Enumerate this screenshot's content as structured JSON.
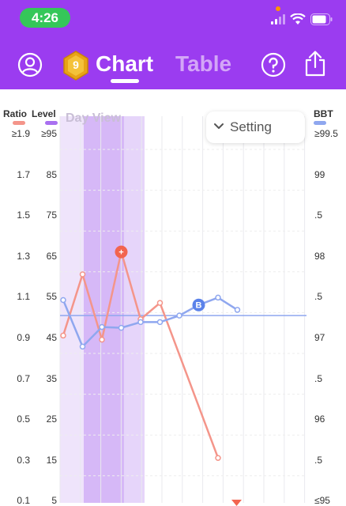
{
  "status_bar": {
    "time": "4:26"
  },
  "nav": {
    "badge_number": "9",
    "tab_chart": "Chart",
    "tab_table": "Table"
  },
  "axes": {
    "ratio_label": "Ratio",
    "level_label": "Level",
    "bbt_label": "BBT",
    "ratio_color": "#f4958a",
    "level_color": "#a970f0",
    "bbt_color": "#8fa7ef",
    "ratio_ticks": [
      "≥1.9",
      "1.7",
      "1.5",
      "1.3",
      "1.1",
      "0.9",
      "0.7",
      "0.5",
      "0.3",
      "0.1"
    ],
    "level_ticks": [
      "≥95",
      "85",
      "75",
      "65",
      "55",
      "45",
      "35",
      "25",
      "15",
      "5"
    ],
    "bbt_ticks": [
      "≥99.5",
      "99",
      ".5",
      "98",
      ".5",
      "97",
      ".5",
      "96",
      ".5",
      "≤95"
    ]
  },
  "controls": {
    "day_view": "Day View",
    "setting": "Setting"
  },
  "chart_data": {
    "type": "line",
    "series": [
      {
        "name": "Ratio",
        "color": "#f4958a",
        "points": [
          [
            0,
            0.91
          ],
          [
            1,
            1.21
          ],
          [
            2,
            0.89
          ],
          [
            3,
            1.32
          ],
          [
            4,
            0.99
          ],
          [
            5,
            1.07
          ],
          [
            8,
            0.31
          ]
        ]
      },
      {
        "name": "BBT",
        "color": "#8fa7ef",
        "points": [
          [
            0,
            97.46
          ],
          [
            1,
            96.89
          ],
          [
            2,
            97.13
          ],
          [
            3,
            97.12
          ],
          [
            4,
            97.19
          ],
          [
            5,
            97.19
          ],
          [
            6,
            97.27
          ],
          [
            7,
            97.4
          ],
          [
            8,
            97.49
          ],
          [
            9,
            97.34
          ]
        ]
      }
    ],
    "markers": [
      {
        "series": "Ratio",
        "index": 3,
        "symbol": "+"
      },
      {
        "series": "BBT",
        "index": 7,
        "symbol": "B"
      }
    ],
    "coverline_bbt": 97.27
  }
}
